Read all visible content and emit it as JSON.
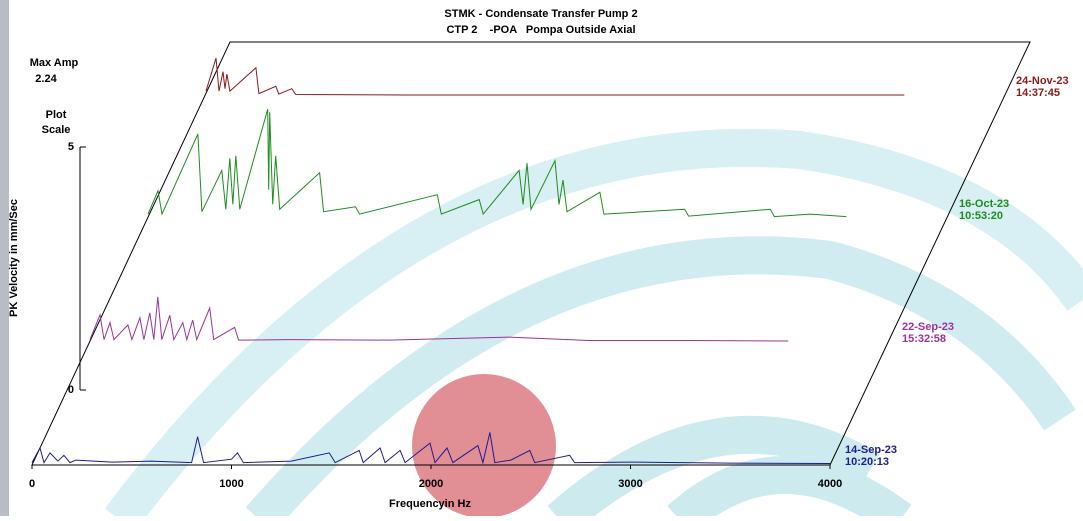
{
  "chart_data": {
    "type": "waterfall",
    "title": "STMK - Condensate Transfer Pump 2",
    "subtitle": "CTP 2    -POA   Pompa Outside Axial",
    "x_label": "Frequencyin Hz",
    "y_label": "PK Velocity in mm/Sec",
    "max_amp_label": "Max Amp",
    "max_amp": 2.24,
    "scale_label": "Plot Scale",
    "xlim": [
      0,
      4000
    ],
    "xticks": [
      0,
      1000,
      2000,
      3000,
      4000
    ],
    "ylim": [
      0,
      5
    ],
    "yticks": [
      0,
      5
    ],
    "series": [
      {
        "name": "14-Sep-23",
        "time": "10:20:13",
        "color": "#1c1c8e",
        "x": [
          0,
          40,
          60,
          90,
          130,
          160,
          190,
          220,
          400,
          600,
          800,
          830,
          860,
          1000,
          1030,
          1060,
          1300,
          1490,
          1520,
          1640,
          1660,
          1745,
          1770,
          1845,
          1870,
          1995,
          2020,
          2080,
          2110,
          2235,
          2260,
          2295,
          2320,
          2400,
          2495,
          2520,
          2695,
          2720,
          3000,
          3500,
          4000
        ],
        "values": [
          0.05,
          0.35,
          0.05,
          0.25,
          0.08,
          0.2,
          0.05,
          0.1,
          0.06,
          0.08,
          0.05,
          0.58,
          0.05,
          0.12,
          0.25,
          0.05,
          0.08,
          0.25,
          0.05,
          0.3,
          0.05,
          0.35,
          0.05,
          0.3,
          0.05,
          0.45,
          0.05,
          0.35,
          0.05,
          0.4,
          0.05,
          0.67,
          0.05,
          0.1,
          0.3,
          0.05,
          0.2,
          0.05,
          0.06,
          0.04,
          0.03
        ]
      },
      {
        "name": "22-Sep-23",
        "time": "15:32:58",
        "color": "#993399",
        "x": [
          0,
          50,
          70,
          100,
          120,
          190,
          210,
          250,
          270,
          300,
          320,
          340,
          360,
          400,
          420,
          465,
          485,
          515,
          535,
          600,
          620,
          725,
          745,
          1000,
          1500,
          2100,
          2500,
          3000,
          3500
        ],
        "values": [
          0.05,
          0.56,
          0.05,
          0.4,
          0.05,
          0.35,
          0.05,
          0.5,
          0.05,
          0.6,
          0.05,
          0.93,
          0.05,
          0.55,
          0.05,
          0.4,
          0.05,
          0.45,
          0.05,
          0.7,
          0.05,
          0.3,
          0.04,
          0.05,
          0.04,
          0.1,
          0.03,
          0.03,
          0.02
        ]
      },
      {
        "name": "16-Oct-23",
        "time": "10:53:20",
        "color": "#1e8c1e",
        "x": [
          0,
          50,
          70,
          250,
          270,
          370,
          390,
          410,
          425,
          440,
          460,
          600,
          605,
          610,
          625,
          640,
          660,
          860,
          880,
          1040,
          1060,
          1450,
          1470,
          1660,
          1680,
          1860,
          1880,
          1900,
          1920,
          2040,
          2060,
          2080,
          2100,
          2265,
          2285,
          2690,
          2710,
          3120,
          3140,
          3320,
          3500
        ],
        "values": [
          0.1,
          0.58,
          0.1,
          1.75,
          0.15,
          1.0,
          0.2,
          1.25,
          0.3,
          1.3,
          0.2,
          2.26,
          0.6,
          2.2,
          0.3,
          1.3,
          0.2,
          0.95,
          0.15,
          0.25,
          0.1,
          0.5,
          0.1,
          0.4,
          0.1,
          1.0,
          0.3,
          1.15,
          0.2,
          1.2,
          0.3,
          0.8,
          0.15,
          0.55,
          0.1,
          0.2,
          0.06,
          0.2,
          0.05,
          0.1,
          0.05
        ]
      },
      {
        "name": "24-Nov-23",
        "time": "14:37:45",
        "color": "#8b1a1a",
        "x": [
          0,
          50,
          65,
          85,
          95,
          105,
          120,
          250,
          265,
          350,
          365,
          430,
          450,
          1000,
          2000,
          3500
        ],
        "values": [
          0.1,
          0.78,
          0.1,
          0.5,
          0.15,
          0.45,
          0.1,
          0.58,
          0.05,
          0.2,
          0.04,
          0.15,
          0.03,
          0.02,
          0.02,
          0.02
        ]
      }
    ]
  }
}
